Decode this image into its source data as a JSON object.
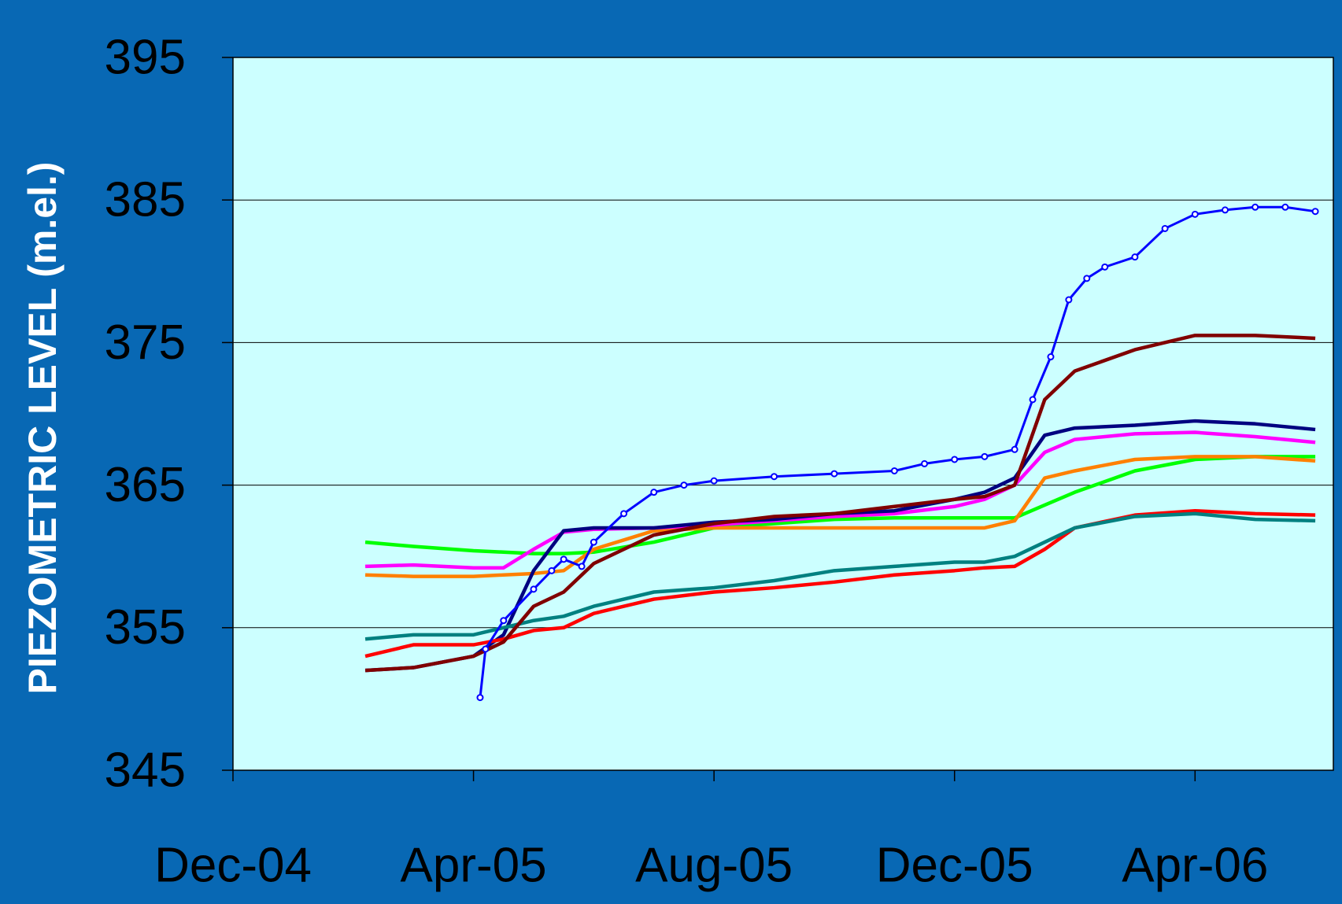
{
  "chart_data": {
    "type": "line",
    "y_label": "PIEZOMETRIC LEVEL (m.el.)",
    "x": [
      2.2,
      3,
      4,
      4.5,
      5,
      5.5,
      6,
      7,
      8,
      9,
      10,
      11,
      12,
      12.5,
      13,
      13.5,
      14,
      15,
      16,
      17,
      18
    ],
    "xlim": [
      0,
      18.3
    ],
    "xticks": [
      {
        "value": 0,
        "label": "Dec-04"
      },
      {
        "value": 4,
        "label": "Apr-05"
      },
      {
        "value": 8,
        "label": "Aug-05"
      },
      {
        "value": 12,
        "label": "Dec-05"
      },
      {
        "value": 16,
        "label": "Apr-06"
      }
    ],
    "ylim": [
      345,
      395
    ],
    "yticks": [
      345,
      355,
      365,
      375,
      385,
      395
    ],
    "grid": true,
    "series": [
      {
        "color": "#00ff00",
        "values": [
          361,
          360.7,
          360.4,
          360.3,
          360.2,
          360.2,
          360.3,
          361,
          362,
          362.3,
          362.6,
          362.7,
          362.7,
          362.7,
          362.7,
          363.6,
          364.5,
          366,
          366.8,
          367,
          367
        ]
      },
      {
        "color": "#ff8000",
        "values": [
          358.7,
          358.6,
          358.6,
          358.7,
          358.8,
          359,
          360.5,
          361.8,
          362,
          362,
          362,
          362,
          362,
          362,
          362.5,
          365.5,
          366,
          366.8,
          367,
          367,
          366.7
        ]
      },
      {
        "color": "#ff00ff",
        "values": [
          359.3,
          359.4,
          359.2,
          359.2,
          360.5,
          361.7,
          361.9,
          362,
          362.2,
          362.5,
          362.8,
          363,
          363.5,
          364,
          365,
          367.3,
          368.2,
          368.6,
          368.7,
          368.4,
          368
        ]
      },
      {
        "color": "#000080",
        "values": [
          352,
          352.2,
          353,
          354.5,
          359,
          361.8,
          362,
          362,
          362.4,
          362.6,
          363,
          363.2,
          364,
          364.5,
          365.5,
          368.5,
          369,
          369.2,
          369.5,
          369.3,
          368.9
        ]
      },
      {
        "color": "#ff0000",
        "values": [
          353,
          353.8,
          353.8,
          354.2,
          354.8,
          355,
          356,
          357,
          357.5,
          357.8,
          358.2,
          358.7,
          359,
          359.2,
          359.3,
          360.5,
          362,
          362.9,
          363.2,
          363,
          362.9
        ]
      },
      {
        "color": "#008080",
        "values": [
          354.2,
          354.5,
          354.5,
          355,
          355.5,
          355.8,
          356.5,
          357.5,
          357.8,
          358.3,
          359,
          359.3,
          359.6,
          359.6,
          360,
          361,
          362,
          362.8,
          363,
          362.6,
          362.5
        ]
      },
      {
        "color": "#800000",
        "values": [
          352,
          352.2,
          353,
          354,
          356.5,
          357.5,
          359.5,
          361.5,
          362.3,
          362.8,
          363,
          363.5,
          364,
          364.2,
          365,
          371,
          373,
          374.5,
          375.5,
          375.5,
          375.3
        ]
      },
      {
        "color": "#0000ff",
        "markers": true,
        "x": [
          4.11,
          4.2,
          4.5,
          5,
          5.3,
          5.5,
          5.8,
          6,
          6.5,
          7,
          7.5,
          8,
          9,
          10,
          11,
          11.5,
          12,
          12.5,
          13,
          13.3,
          13.6,
          13.9,
          14.2,
          14.5,
          15,
          15.5,
          16,
          16.5,
          17,
          17.5,
          18
        ],
        "values": [
          350.1,
          353.5,
          355.5,
          357.7,
          359,
          359.8,
          359.3,
          361,
          363,
          364.5,
          365,
          365.3,
          365.6,
          365.8,
          366,
          366.5,
          366.8,
          367,
          367.5,
          371,
          374,
          378,
          379.5,
          380.3,
          381,
          383,
          384,
          384.3,
          384.5,
          384.5,
          384.2
        ]
      }
    ]
  }
}
